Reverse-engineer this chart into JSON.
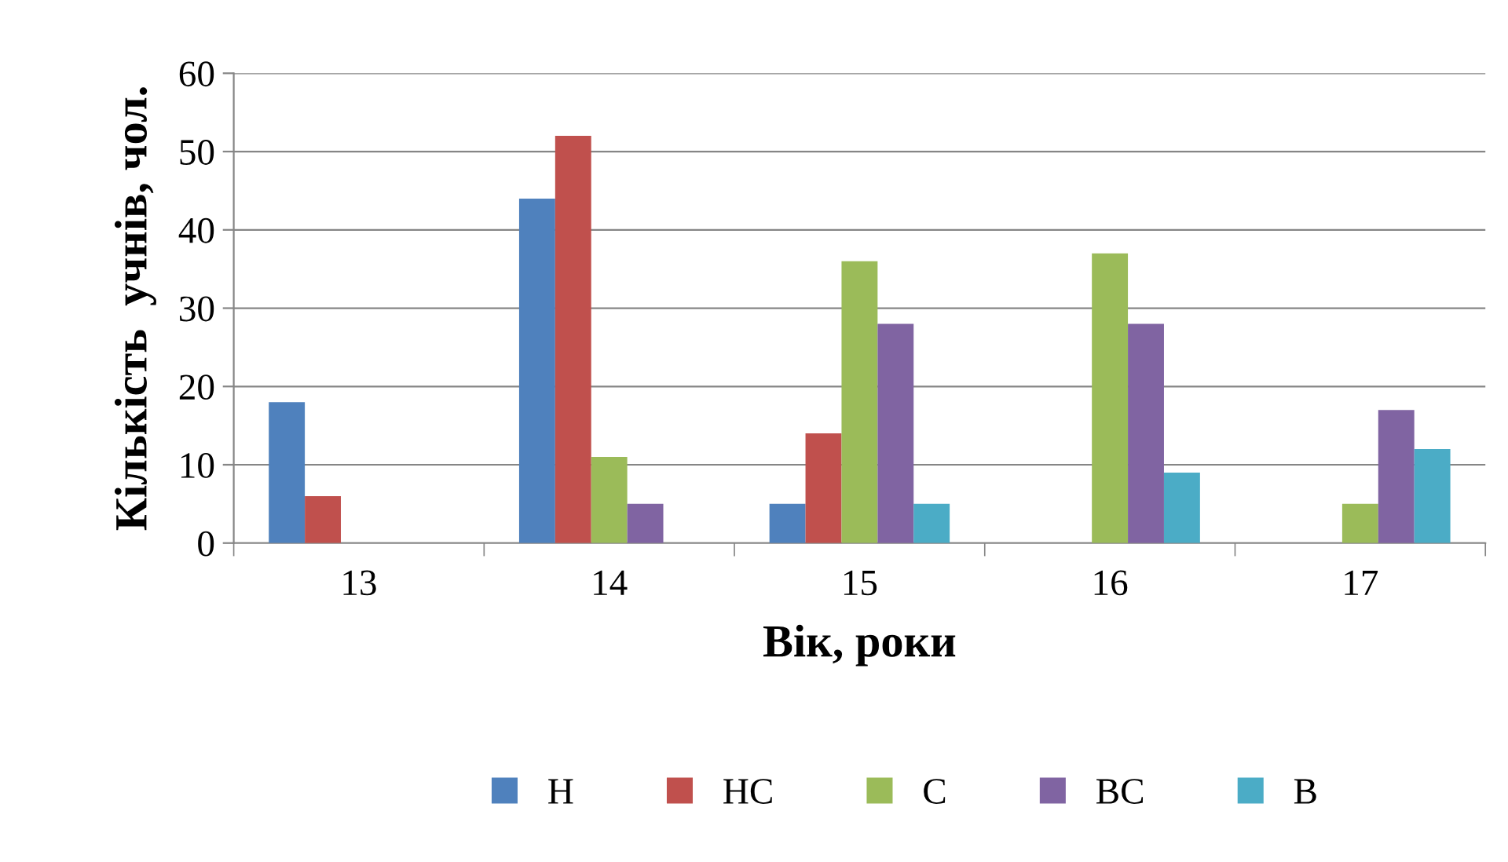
{
  "chart_data": {
    "type": "bar",
    "xlabel": "Вік, роки",
    "ylabel": "Кількість  учнів, чол.",
    "categories": [
      "13",
      "14",
      "15",
      "16",
      "17"
    ],
    "series": [
      {
        "name": "Н",
        "color": "#4f81bd",
        "values": [
          18,
          44,
          5,
          0,
          0
        ]
      },
      {
        "name": "НС",
        "color": "#c0504d",
        "values": [
          6,
          52,
          14,
          0,
          0
        ]
      },
      {
        "name": "С",
        "color": "#9bbb59",
        "values": [
          0,
          11,
          36,
          37,
          5
        ]
      },
      {
        "name": "ВС",
        "color": "#8064a2",
        "values": [
          0,
          5,
          28,
          28,
          17
        ]
      },
      {
        "name": "В",
        "color": "#4bacc6",
        "values": [
          0,
          0,
          5,
          9,
          12
        ]
      }
    ],
    "ylim": [
      0,
      60
    ],
    "yticks": [
      0,
      10,
      20,
      30,
      40,
      50,
      60
    ],
    "grid": "y",
    "legend": "bottom"
  }
}
